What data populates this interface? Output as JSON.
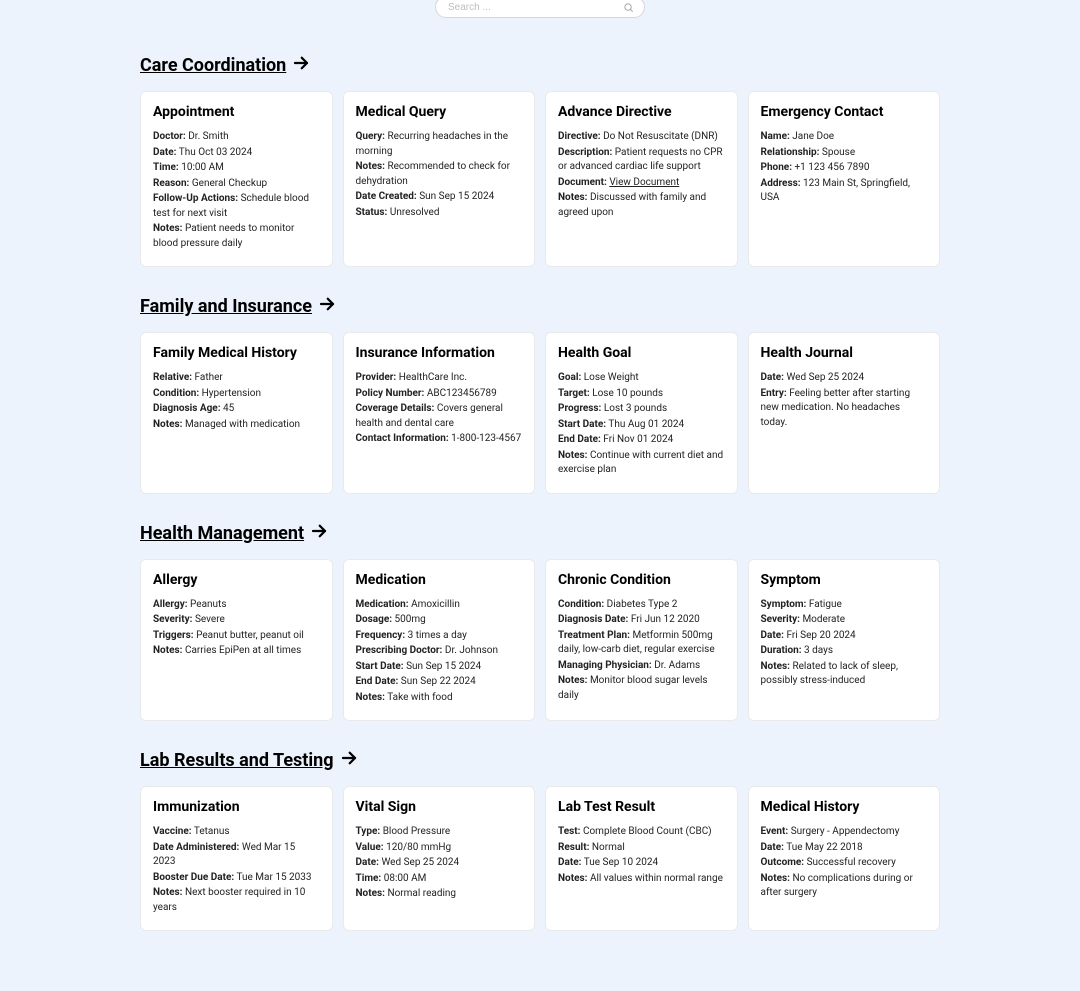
{
  "search": {
    "placeholder": "Search ..."
  },
  "sections": {
    "care": {
      "title": "Care Coordination",
      "cards": [
        {
          "title": "Appointment",
          "fields": [
            {
              "label": "Doctor:",
              "value": "Dr. Smith"
            },
            {
              "label": "Date:",
              "value": "Thu Oct 03 2024"
            },
            {
              "label": "Time:",
              "value": "10:00 AM"
            },
            {
              "label": "Reason:",
              "value": "General Checkup"
            },
            {
              "label": "Follow-Up Actions:",
              "value": "Schedule blood test for next visit"
            },
            {
              "label": "Notes:",
              "value": "Patient needs to monitor blood pressure daily"
            }
          ]
        },
        {
          "title": "Medical Query",
          "fields": [
            {
              "label": "Query:",
              "value": "Recurring headaches in the morning"
            },
            {
              "label": "Notes:",
              "value": "Recommended to check for dehydration"
            },
            {
              "label": "Date Created:",
              "value": "Sun Sep 15 2024"
            },
            {
              "label": "Status:",
              "value": "Unresolved"
            }
          ]
        },
        {
          "title": "Advance Directive",
          "fields": [
            {
              "label": "Directive:",
              "value": "Do Not Resuscitate (DNR)"
            },
            {
              "label": "Description:",
              "value": "Patient requests no CPR or advanced cardiac life support"
            },
            {
              "label": "Document:",
              "value": "View Document",
              "link": true
            },
            {
              "label": "Notes:",
              "value": "Discussed with family and agreed upon"
            }
          ]
        },
        {
          "title": "Emergency Contact",
          "fields": [
            {
              "label": "Name:",
              "value": "Jane Doe"
            },
            {
              "label": "Relationship:",
              "value": "Spouse"
            },
            {
              "label": "Phone:",
              "value": "+1 123 456 7890"
            },
            {
              "label": "Address:",
              "value": "123 Main St, Springfield, USA"
            }
          ]
        }
      ]
    },
    "family": {
      "title": "Family and Insurance",
      "cards": [
        {
          "title": "Family Medical History",
          "fields": [
            {
              "label": "Relative:",
              "value": "Father"
            },
            {
              "label": "Condition:",
              "value": "Hypertension"
            },
            {
              "label": "Diagnosis Age:",
              "value": "45"
            },
            {
              "label": "Notes:",
              "value": "Managed with medication"
            }
          ]
        },
        {
          "title": "Insurance Information",
          "fields": [
            {
              "label": "Provider:",
              "value": "HealthCare Inc."
            },
            {
              "label": "Policy Number:",
              "value": "ABC123456789"
            },
            {
              "label": "Coverage Details:",
              "value": "Covers general health and dental care"
            },
            {
              "label": "Contact Information:",
              "value": "1-800-123-4567"
            }
          ]
        },
        {
          "title": "Health Goal",
          "fields": [
            {
              "label": "Goal:",
              "value": "Lose Weight"
            },
            {
              "label": "Target:",
              "value": "Lose 10 pounds"
            },
            {
              "label": "Progress:",
              "value": "Lost 3 pounds"
            },
            {
              "label": "Start Date:",
              "value": "Thu Aug 01 2024"
            },
            {
              "label": "End Date:",
              "value": "Fri Nov 01 2024"
            },
            {
              "label": "Notes:",
              "value": "Continue with current diet and exercise plan"
            }
          ]
        },
        {
          "title": "Health Journal",
          "fields": [
            {
              "label": "Date:",
              "value": "Wed Sep 25 2024"
            },
            {
              "label": "Entry:",
              "value": "Feeling better after starting new medication. No headaches today."
            }
          ]
        }
      ]
    },
    "health": {
      "title": "Health Management",
      "cards": [
        {
          "title": "Allergy",
          "fields": [
            {
              "label": "Allergy:",
              "value": "Peanuts"
            },
            {
              "label": "Severity:",
              "value": "Severe"
            },
            {
              "label": "Triggers:",
              "value": "Peanut butter, peanut oil"
            },
            {
              "label": "Notes:",
              "value": "Carries EpiPen at all times"
            }
          ]
        },
        {
          "title": "Medication",
          "fields": [
            {
              "label": "Medication:",
              "value": "Amoxicillin"
            },
            {
              "label": "Dosage:",
              "value": "500mg"
            },
            {
              "label": "Frequency:",
              "value": "3 times a day"
            },
            {
              "label": "Prescribing Doctor:",
              "value": "Dr. Johnson"
            },
            {
              "label": "Start Date:",
              "value": "Sun Sep 15 2024"
            },
            {
              "label": "End Date:",
              "value": "Sun Sep 22 2024"
            },
            {
              "label": "Notes:",
              "value": "Take with food"
            }
          ]
        },
        {
          "title": "Chronic Condition",
          "fields": [
            {
              "label": "Condition:",
              "value": "Diabetes Type 2"
            },
            {
              "label": "Diagnosis Date:",
              "value": "Fri Jun 12 2020"
            },
            {
              "label": "Treatment Plan:",
              "value": "Metformin 500mg daily, low-carb diet, regular exercise"
            },
            {
              "label": "Managing Physician:",
              "value": "Dr. Adams"
            },
            {
              "label": "Notes:",
              "value": "Monitor blood sugar levels daily"
            }
          ]
        },
        {
          "title": "Symptom",
          "fields": [
            {
              "label": "Symptom:",
              "value": "Fatigue"
            },
            {
              "label": "Severity:",
              "value": "Moderate"
            },
            {
              "label": "Date:",
              "value": "Fri Sep 20 2024"
            },
            {
              "label": "Duration:",
              "value": "3 days"
            },
            {
              "label": "Notes:",
              "value": "Related to lack of sleep, possibly stress-induced"
            }
          ]
        }
      ]
    },
    "lab": {
      "title": "Lab Results and Testing",
      "cards": [
        {
          "title": "Immunization",
          "fields": [
            {
              "label": "Vaccine:",
              "value": "Tetanus"
            },
            {
              "label": "Date Administered:",
              "value": "Wed Mar 15 2023"
            },
            {
              "label": "Booster Due Date:",
              "value": "Tue Mar 15 2033"
            },
            {
              "label": "Notes:",
              "value": "Next booster required in 10 years"
            }
          ]
        },
        {
          "title": "Vital Sign",
          "fields": [
            {
              "label": "Type:",
              "value": "Blood Pressure"
            },
            {
              "label": "Value:",
              "value": "120/80 mmHg"
            },
            {
              "label": "Date:",
              "value": "Wed Sep 25 2024"
            },
            {
              "label": "Time:",
              "value": "08:00 AM"
            },
            {
              "label": "Notes:",
              "value": "Normal reading"
            }
          ]
        },
        {
          "title": "Lab Test Result",
          "fields": [
            {
              "label": "Test:",
              "value": "Complete Blood Count (CBC)"
            },
            {
              "label": "Result:",
              "value": "Normal"
            },
            {
              "label": "Date:",
              "value": "Tue Sep 10 2024"
            },
            {
              "label": "Notes:",
              "value": "All values within normal range"
            }
          ]
        },
        {
          "title": "Medical History",
          "fields": [
            {
              "label": "Event:",
              "value": "Surgery - Appendectomy"
            },
            {
              "label": "Date:",
              "value": "Tue May 22 2018"
            },
            {
              "label": "Outcome:",
              "value": "Successful recovery"
            },
            {
              "label": "Notes:",
              "value": "No complications during or after surgery"
            }
          ]
        }
      ]
    }
  }
}
